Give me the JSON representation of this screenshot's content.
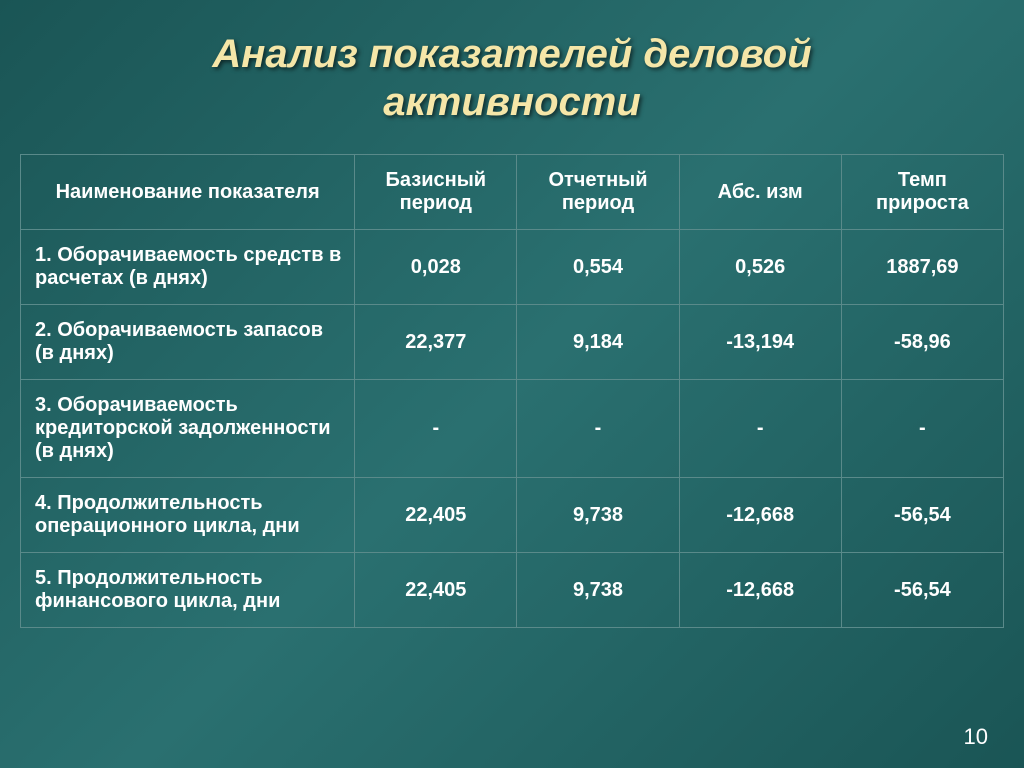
{
  "title_line1": "Анализ показателей деловой",
  "title_line2": "активности",
  "page_number": "10",
  "styling": {
    "background_gradient": [
      "#1a5555",
      "#2a7070",
      "#1a5555"
    ],
    "title_color": "#f5e6a8",
    "text_color": "#ffffff",
    "border_color": "#5a8a8a",
    "title_fontsize_pt": 40,
    "cell_fontsize_pt": 20,
    "font_family": "Arial",
    "title_italic": true,
    "title_bold": true,
    "column_widths_percent": [
      34,
      16.5,
      16.5,
      16.5,
      16.5
    ]
  },
  "table": {
    "columns": [
      "Наименование показателя",
      "Базисный период",
      "Отчетный период",
      "Абс. изм",
      "Темп прироста"
    ],
    "rows": [
      {
        "label": "1. Оборачиваемость средств в расчетах (в днях)",
        "base": "0,028",
        "report": "0,554",
        "abs": "0,526",
        "growth": "1887,69"
      },
      {
        "label": "2. Оборачиваемость запасов (в днях)",
        "base": "22,377",
        "report": "9,184",
        "abs": "-13,194",
        "growth": "-58,96"
      },
      {
        "label": "3. Оборачиваемость кредиторской задолженности (в днях)",
        "base": "-",
        "report": "-",
        "abs": "-",
        "growth": "-"
      },
      {
        "label": "4. Продолжительность операционного цикла, дни",
        "base": "22,405",
        "report": "9,738",
        "abs": "-12,668",
        "growth": "-56,54"
      },
      {
        "label": "5. Продолжительность финансового цикла, дни",
        "base": "22,405",
        "report": "9,738",
        "abs": "-12,668",
        "growth": "-56,54"
      }
    ]
  }
}
